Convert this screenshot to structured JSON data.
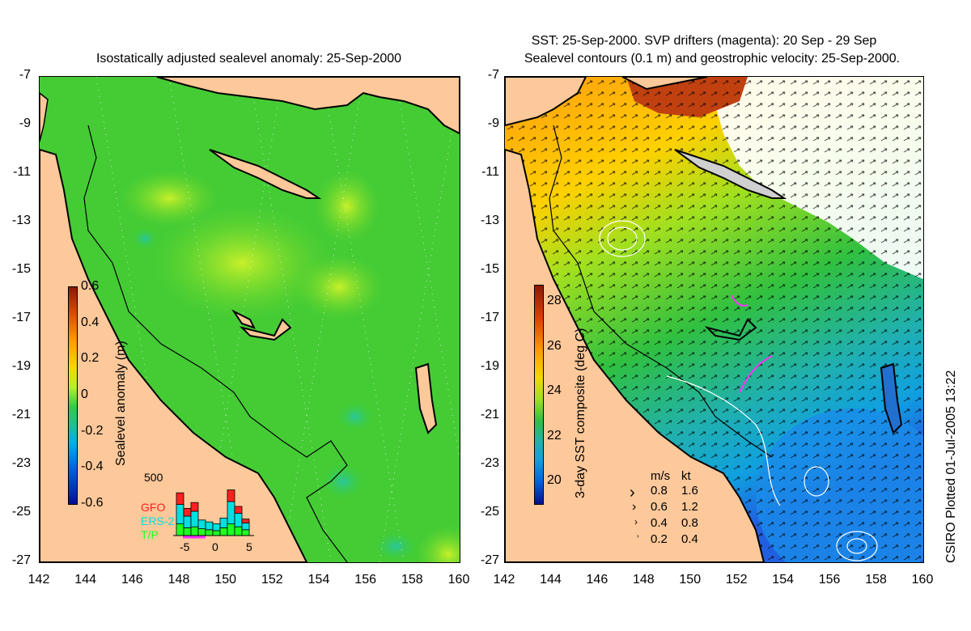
{
  "left_panel": {
    "title": "Isostatically adjusted sealevel anomaly: 25-Sep-2000",
    "colorbar": {
      "label": "Sealevel anomaly (m)",
      "ticks": [
        "0.6",
        "0.4",
        "0.2",
        "0",
        "-0.2",
        "-0.4",
        "-0.6"
      ]
    },
    "histogram": {
      "max_label": "500",
      "legend": [
        {
          "name": "GFO",
          "color": "#ff2020"
        },
        {
          "name": "ERS-2",
          "color": "#00e0e0"
        },
        {
          "name": "T/P",
          "color": "#20ff20"
        }
      ],
      "x_ticks": [
        "-5",
        "0",
        "5"
      ],
      "bars": [
        {
          "x": -5,
          "tp": 120,
          "ers": 200,
          "gfo": 120
        },
        {
          "x": -4,
          "tp": 80,
          "ers": 120,
          "gfo": 80
        },
        {
          "x": -3,
          "tp": 90,
          "ers": 160,
          "gfo": 90
        },
        {
          "x": -2,
          "tp": 70,
          "ers": 90,
          "gfo": 0
        },
        {
          "x": -1,
          "tp": 60,
          "ers": 80,
          "gfo": 0
        },
        {
          "x": 0,
          "tp": 50,
          "ers": 70,
          "gfo": 0
        },
        {
          "x": 1,
          "tp": 80,
          "ers": 100,
          "gfo": 0
        },
        {
          "x": 2,
          "tp": 120,
          "ers": 230,
          "gfo": 120
        },
        {
          "x": 3,
          "tp": 90,
          "ers": 140,
          "gfo": 70
        },
        {
          "x": 4,
          "tp": 60,
          "ers": 70,
          "gfo": 40
        }
      ]
    }
  },
  "right_panel": {
    "title_line1": "SST: 25-Sep-2000. SVP drifters (magenta): 20 Sep - 29 Sep",
    "title_line2": "Sealevel contours (0.1 m) and geostrophic velocity: 25-Sep-2000.",
    "colorbar": {
      "label": "3-day SST composite (deg C)",
      "ticks": [
        "28",
        "26",
        "24",
        "22",
        "20"
      ]
    },
    "velocity_legend": {
      "header_ms": "m/s",
      "header_kt": "kt",
      "rows": [
        {
          "ms": "0.8",
          "kt": "1.6"
        },
        {
          "ms": "0.6",
          "kt": "1.2"
        },
        {
          "ms": "0.4",
          "kt": "0.8"
        },
        {
          "ms": "0.2",
          "kt": "0.4"
        }
      ]
    }
  },
  "axes": {
    "lat_ticks": [
      "-7",
      "-9",
      "-11",
      "-13",
      "-15",
      "-17",
      "-19",
      "-21",
      "-23",
      "-25",
      "-27"
    ],
    "lon_ticks": [
      "142",
      "144",
      "146",
      "148",
      "150",
      "152",
      "154",
      "156",
      "158",
      "160"
    ]
  },
  "credit": "CSIRO Plotted 01-Jul-2005 13:22",
  "colors": {
    "land": "#fdc89a",
    "ocean_green": "#3fcf2a",
    "light_green": "#a8ee2a",
    "coast": "#000000"
  }
}
